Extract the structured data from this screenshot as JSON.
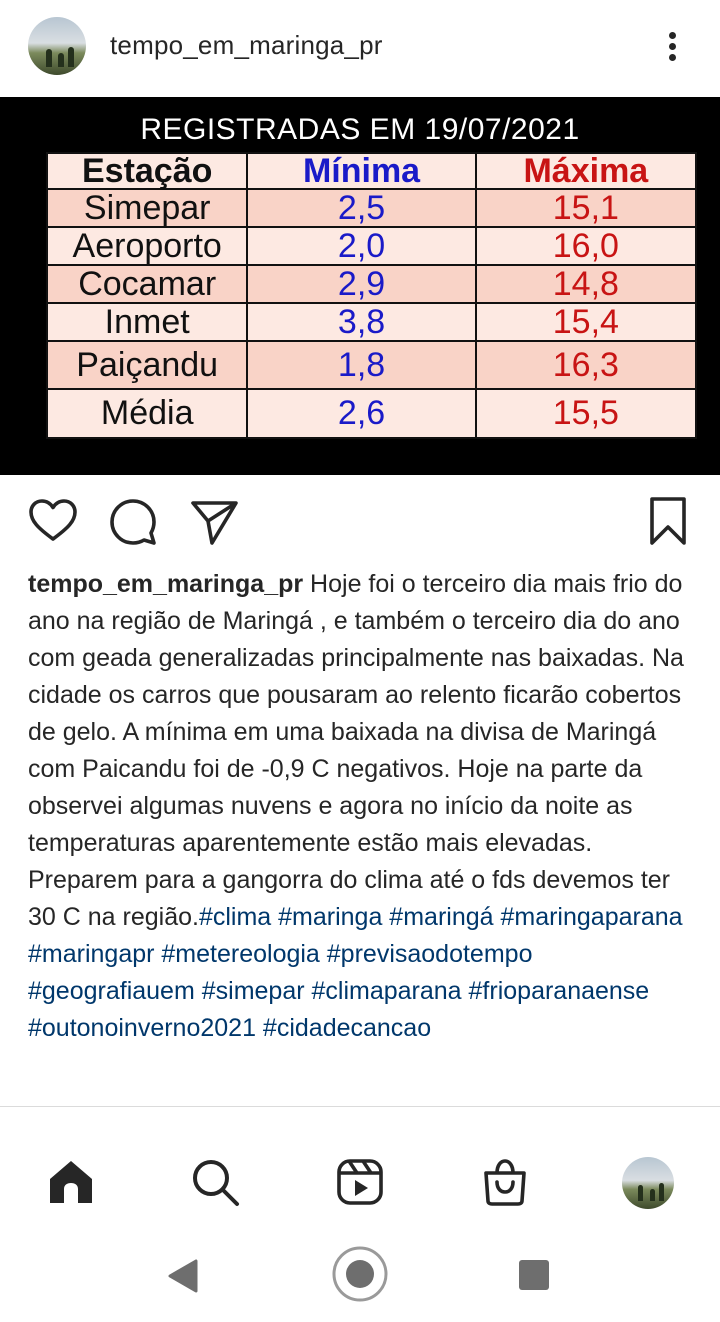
{
  "header": {
    "username": "tempo_em_maringa_pr"
  },
  "image": {
    "title": "REGISTRADAS EM 19/07/2021",
    "columns": [
      "Estação",
      "Mínima",
      "Máxima"
    ],
    "rows": [
      [
        "Simepar",
        "2,5",
        "15,1"
      ],
      [
        "Aeroporto",
        "2,0",
        "16,0"
      ],
      [
        "Cocamar",
        "2,9",
        "14,8"
      ],
      [
        "Inmet",
        "3,8",
        "15,4"
      ],
      [
        "Paiçandu",
        "1,8",
        "16,3"
      ],
      [
        "Média",
        "2,6",
        "15,5"
      ]
    ]
  },
  "caption": {
    "username": "tempo_em_maringa_pr",
    "text": " Hoje foi o terceiro dia mais frio do ano na região de Maringá , e também o terceiro dia do ano com geada generalizadas principalmente nas baixadas. Na cidade os carros que pousaram ao relento ficarão cobertos de gelo. A mínima em uma baixada na divisa de Maringá com Paicandu foi de -0,9 C negativos. Hoje  na parte da observei algumas nuvens e agora no início da noite as temperaturas aparentemente estão mais elevadas. Preparem para a gangorra do clima até o fds devemos ter 30 C na região.",
    "hashtags": "#clima #maringa #maringá #maringaparana #maringapr #metereologia #previsaodotempo #geografiauem #simepar #climaparana #frioparanaense #outonoinverno2021 #cidadecancao"
  },
  "icons": {
    "more": "more-vertical-icon",
    "like": "heart-icon",
    "comment": "comment-icon",
    "share": "send-icon",
    "save": "bookmark-icon",
    "home": "home-icon",
    "search": "search-icon",
    "reels": "reels-icon",
    "shop": "shop-icon"
  },
  "colors": {
    "minima": "#1a1ac8",
    "maxima": "#c81414",
    "hashtag": "#00376b"
  }
}
